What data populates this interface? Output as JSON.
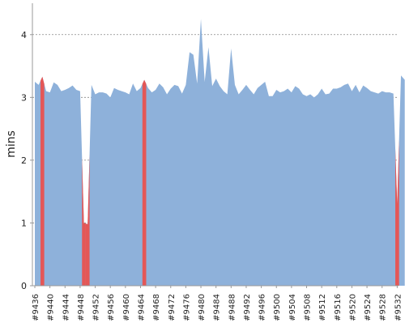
{
  "chart_data": {
    "type": "area",
    "ylabel": "mins",
    "ylim": [
      0,
      4.5
    ],
    "yticks": [
      0,
      1,
      2,
      3,
      4
    ],
    "grid": true,
    "legend": "none",
    "x_tick_labels": [
      "#9436",
      "#9440",
      "#9444",
      "#9448",
      "#9452",
      "#9456",
      "#9460",
      "#9464",
      "#9468",
      "#9472",
      "#9476",
      "#9480",
      "#9484",
      "#9488",
      "#9492",
      "#9496",
      "#9500",
      "#9504",
      "#9508",
      "#9512",
      "#9516",
      "#9520",
      "#9524",
      "#9528",
      "#9532"
    ],
    "x": [
      9436,
      9437,
      9438,
      9439,
      9440,
      9441,
      9442,
      9443,
      9444,
      9445,
      9446,
      9447,
      9448,
      9449,
      9450,
      9451,
      9452,
      9453,
      9454,
      9455,
      9456,
      9457,
      9458,
      9459,
      9460,
      9461,
      9462,
      9463,
      9464,
      9465,
      9466,
      9467,
      9468,
      9469,
      9470,
      9471,
      9472,
      9473,
      9474,
      9475,
      9476,
      9477,
      9478,
      9479,
      9480,
      9481,
      9482,
      9483,
      9484,
      9485,
      9486,
      9487,
      9488,
      9489,
      9490,
      9491,
      9492,
      9493,
      9494,
      9495,
      9496,
      9497,
      9498,
      9499,
      9500,
      9501,
      9502,
      9503,
      9504,
      9505,
      9506,
      9507,
      9508,
      9509,
      9510,
      9511,
      9512,
      9513,
      9514,
      9515,
      9516,
      9517,
      9518,
      9519,
      9520,
      9521,
      9522,
      9523,
      9524,
      9525,
      9526,
      9527,
      9528,
      9529,
      9530,
      9531,
      9532,
      9533,
      9534
    ],
    "values": [
      3.25,
      3.2,
      3.33,
      3.1,
      3.08,
      3.24,
      3.2,
      3.1,
      3.12,
      3.15,
      3.19,
      3.12,
      3.1,
      1.0,
      0.98,
      3.2,
      3.05,
      3.08,
      3.08,
      3.06,
      3.0,
      3.15,
      3.12,
      3.1,
      3.08,
      3.05,
      3.22,
      3.1,
      3.15,
      3.28,
      3.15,
      3.08,
      3.12,
      3.22,
      3.16,
      3.05,
      3.14,
      3.2,
      3.18,
      3.06,
      3.2,
      3.72,
      3.68,
      3.22,
      4.25,
      3.25,
      3.8,
      3.18,
      3.3,
      3.18,
      3.1,
      3.05,
      3.78,
      3.2,
      3.05,
      3.12,
      3.2,
      3.12,
      3.05,
      3.15,
      3.2,
      3.25,
      3.02,
      3.02,
      3.12,
      3.08,
      3.1,
      3.14,
      3.08,
      3.18,
      3.14,
      3.05,
      3.02,
      3.05,
      3.0,
      3.05,
      3.14,
      3.05,
      3.06,
      3.14,
      3.14,
      3.16,
      3.2,
      3.22,
      3.1,
      3.2,
      3.08,
      3.19,
      3.15,
      3.1,
      3.08,
      3.06,
      3.1,
      3.08,
      3.08,
      3.06,
      1.3,
      3.35,
      3.28
    ],
    "highlight_x": [
      9438,
      9449,
      9450,
      9465,
      9532
    ],
    "colors": {
      "area": "#8eb1da",
      "highlight": "#e45757",
      "grid": "#888888",
      "axis": "#999999",
      "text": "#222222"
    }
  }
}
